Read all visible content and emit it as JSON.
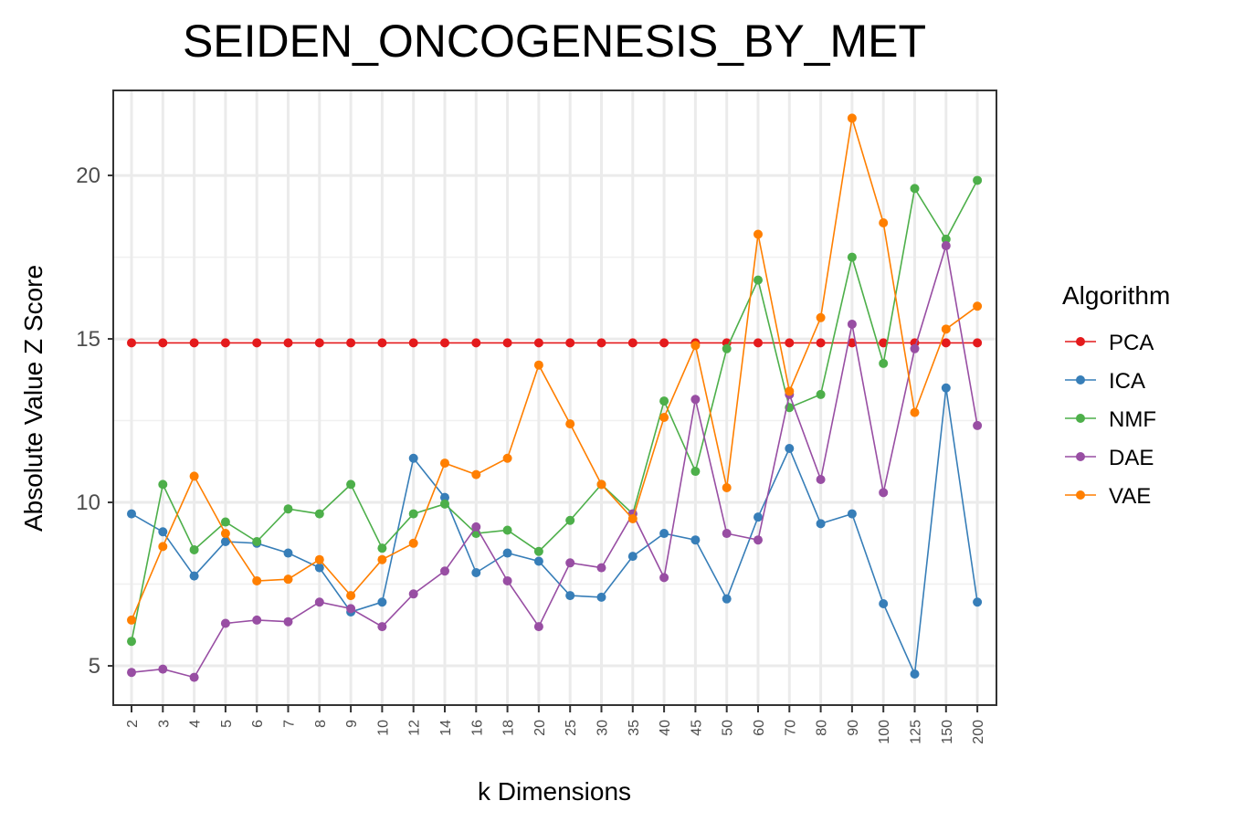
{
  "chart_data": {
    "type": "line",
    "title": "SEIDEN_ONCOGENESIS_BY_MET",
    "xlabel": "k Dimensions",
    "ylabel": "Absolute Value Z Score",
    "categories": [
      "2",
      "3",
      "4",
      "5",
      "6",
      "7",
      "8",
      "9",
      "10",
      "12",
      "14",
      "16",
      "18",
      "20",
      "25",
      "30",
      "35",
      "40",
      "45",
      "50",
      "60",
      "70",
      "80",
      "90",
      "100",
      "125",
      "150",
      "200"
    ],
    "yticks": [
      5,
      10,
      15,
      20
    ],
    "ylim": [
      3.8,
      22.6
    ],
    "grid": true,
    "legend_title": "Algorithm",
    "legend_position": "right",
    "series": [
      {
        "name": "PCA",
        "color": "#e41a1c",
        "values": [
          14.88,
          14.88,
          14.88,
          14.88,
          14.88,
          14.88,
          14.88,
          14.88,
          14.88,
          14.88,
          14.88,
          14.88,
          14.88,
          14.88,
          14.88,
          14.88,
          14.88,
          14.88,
          14.88,
          14.88,
          14.88,
          14.88,
          14.88,
          14.88,
          14.88,
          14.88,
          14.88,
          14.88
        ]
      },
      {
        "name": "ICA",
        "color": "#377eb8",
        "values": [
          9.65,
          9.1,
          7.75,
          8.8,
          8.75,
          8.45,
          8.0,
          6.65,
          6.95,
          11.35,
          10.15,
          7.85,
          8.45,
          8.2,
          7.15,
          7.1,
          8.35,
          9.05,
          8.85,
          7.05,
          9.55,
          11.65,
          9.35,
          9.65,
          6.9,
          4.75,
          13.5,
          6.95
        ]
      },
      {
        "name": "NMF",
        "color": "#4daf4a",
        "values": [
          5.75,
          10.55,
          8.55,
          9.4,
          8.8,
          9.8,
          9.65,
          10.55,
          8.6,
          9.65,
          9.95,
          9.05,
          9.15,
          8.5,
          9.45,
          10.55,
          9.65,
          13.1,
          10.95,
          14.7,
          16.8,
          12.9,
          13.3,
          17.5,
          14.25,
          19.6,
          18.05,
          19.85
        ]
      },
      {
        "name": "DAE",
        "color": "#984ea3",
        "values": [
          4.8,
          4.9,
          4.65,
          6.3,
          6.4,
          6.35,
          6.95,
          6.75,
          6.2,
          7.2,
          7.9,
          9.25,
          7.6,
          6.2,
          8.15,
          8.0,
          9.65,
          7.7,
          13.15,
          9.05,
          8.85,
          13.3,
          10.7,
          15.45,
          10.3,
          14.7,
          17.85,
          12.35
        ]
      },
      {
        "name": "VAE",
        "color": "#ff7f00",
        "values": [
          6.4,
          8.65,
          10.8,
          9.05,
          7.6,
          7.65,
          8.25,
          7.15,
          8.25,
          8.75,
          11.2,
          10.85,
          11.35,
          14.2,
          12.4,
          10.55,
          9.5,
          12.6,
          14.8,
          10.45,
          18.2,
          13.4,
          15.65,
          21.75,
          18.55,
          12.75,
          15.3,
          16.0
        ]
      }
    ]
  }
}
